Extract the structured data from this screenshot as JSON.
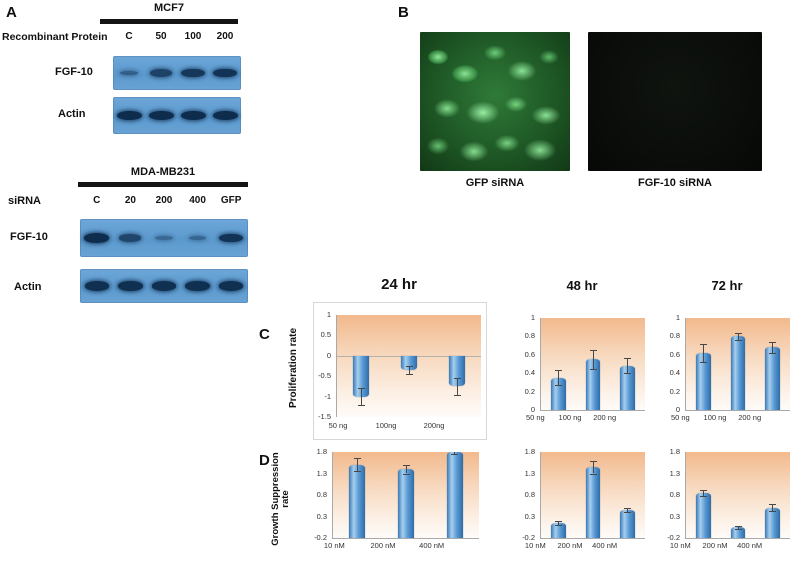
{
  "panels": {
    "a": "A",
    "b": "B",
    "c": "C",
    "d": "D"
  },
  "western": {
    "mcf7": {
      "title": "MCF7",
      "row_label": "Recombinant Protein",
      "lanes": [
        "C",
        "50",
        "100",
        "200"
      ],
      "blots": [
        {
          "label": "FGF-10",
          "bands": [
            0.3,
            0.7,
            0.85,
            0.9
          ]
        },
        {
          "label": "Actin",
          "bands": [
            1,
            1,
            1,
            1
          ]
        }
      ]
    },
    "mdamb231": {
      "title": "MDA-MB231",
      "row_label": "siRNA",
      "lanes": [
        "C",
        "20",
        "200",
        "400",
        "GFP"
      ],
      "blots": [
        {
          "label": "FGF-10",
          "bands": [
            1,
            0.65,
            0.15,
            0.2,
            0.9
          ]
        },
        {
          "label": "Actin",
          "bands": [
            0.95,
            0.95,
            0.95,
            0.95,
            0.95
          ]
        }
      ]
    }
  },
  "microscopy": {
    "images": [
      {
        "caption": "GFP siRNA"
      },
      {
        "caption": "FGF-10 siRNA"
      }
    ]
  },
  "axis_labels": {
    "proliferation": "Proliferation rate",
    "growth": "Growth Suppression rate"
  },
  "chart_data": [
    {
      "type": "bar",
      "panel": "C",
      "title": "24 hr",
      "categories": [
        "50 ng",
        "100ng",
        "200ng"
      ],
      "values": [
        -1.0,
        -0.35,
        -0.75
      ],
      "errors": [
        0.2,
        0.1,
        0.2
      ],
      "ylabel": "Proliferation rate",
      "ylim": [
        -1.5,
        1
      ],
      "yticks": [
        1,
        0.5,
        0,
        -0.5,
        -1,
        -1.5
      ],
      "baseline": 0
    },
    {
      "type": "bar",
      "panel": "C",
      "title": "48 hr",
      "categories": [
        "50 ng",
        "100 ng",
        "200 ng"
      ],
      "values": [
        0.35,
        0.55,
        0.48
      ],
      "errors": [
        0.08,
        0.1,
        0.08
      ],
      "ylabel": "Proliferation rate",
      "ylim": [
        0,
        1
      ],
      "yticks": [
        1,
        0.8,
        0.6,
        0.4,
        0.2,
        0
      ],
      "baseline": 0
    },
    {
      "type": "bar",
      "panel": "C",
      "title": "72 hr",
      "categories": [
        "50 ng",
        "100 ng",
        "200 ng"
      ],
      "values": [
        0.62,
        0.8,
        0.68
      ],
      "errors": [
        0.1,
        0.04,
        0.06
      ],
      "ylabel": "Proliferation rate",
      "ylim": [
        0,
        1
      ],
      "yticks": [
        1,
        0.8,
        0.6,
        0.4,
        0.2,
        0
      ],
      "baseline": 0
    },
    {
      "type": "bar",
      "panel": "D",
      "title": "",
      "categories": [
        "10 nM",
        "200 nM",
        "400 nM"
      ],
      "values": [
        1.5,
        1.4,
        1.8
      ],
      "errors": [
        0.15,
        0.1,
        0.05
      ],
      "ylabel": "Growth Suppression rate",
      "ylim": [
        -0.2,
        1.8
      ],
      "yticks": [
        1.8,
        1.3,
        0.8,
        0.3,
        -0.2
      ],
      "baseline": -0.2
    },
    {
      "type": "bar",
      "panel": "D",
      "title": "",
      "categories": [
        "10 nM",
        "200 nM",
        "400 nM"
      ],
      "values": [
        0.15,
        1.45,
        0.45
      ],
      "errors": [
        0.05,
        0.15,
        0.05
      ],
      "ylabel": "Growth Suppression rate",
      "ylim": [
        -0.2,
        1.8
      ],
      "yticks": [
        1.8,
        1.3,
        0.8,
        0.3,
        -0.2
      ],
      "baseline": -0.2
    },
    {
      "type": "bar",
      "panel": "D",
      "title": "",
      "categories": [
        "10 nM",
        "200 nM",
        "400 nM"
      ],
      "values": [
        0.85,
        0.05,
        0.5
      ],
      "errors": [
        0.07,
        0.03,
        0.08
      ],
      "ylabel": "Growth Suppression rate",
      "ylim": [
        -0.2,
        1.8
      ],
      "yticks": [
        1.8,
        1.3,
        0.8,
        0.3,
        -0.2
      ],
      "baseline": -0.2
    }
  ]
}
